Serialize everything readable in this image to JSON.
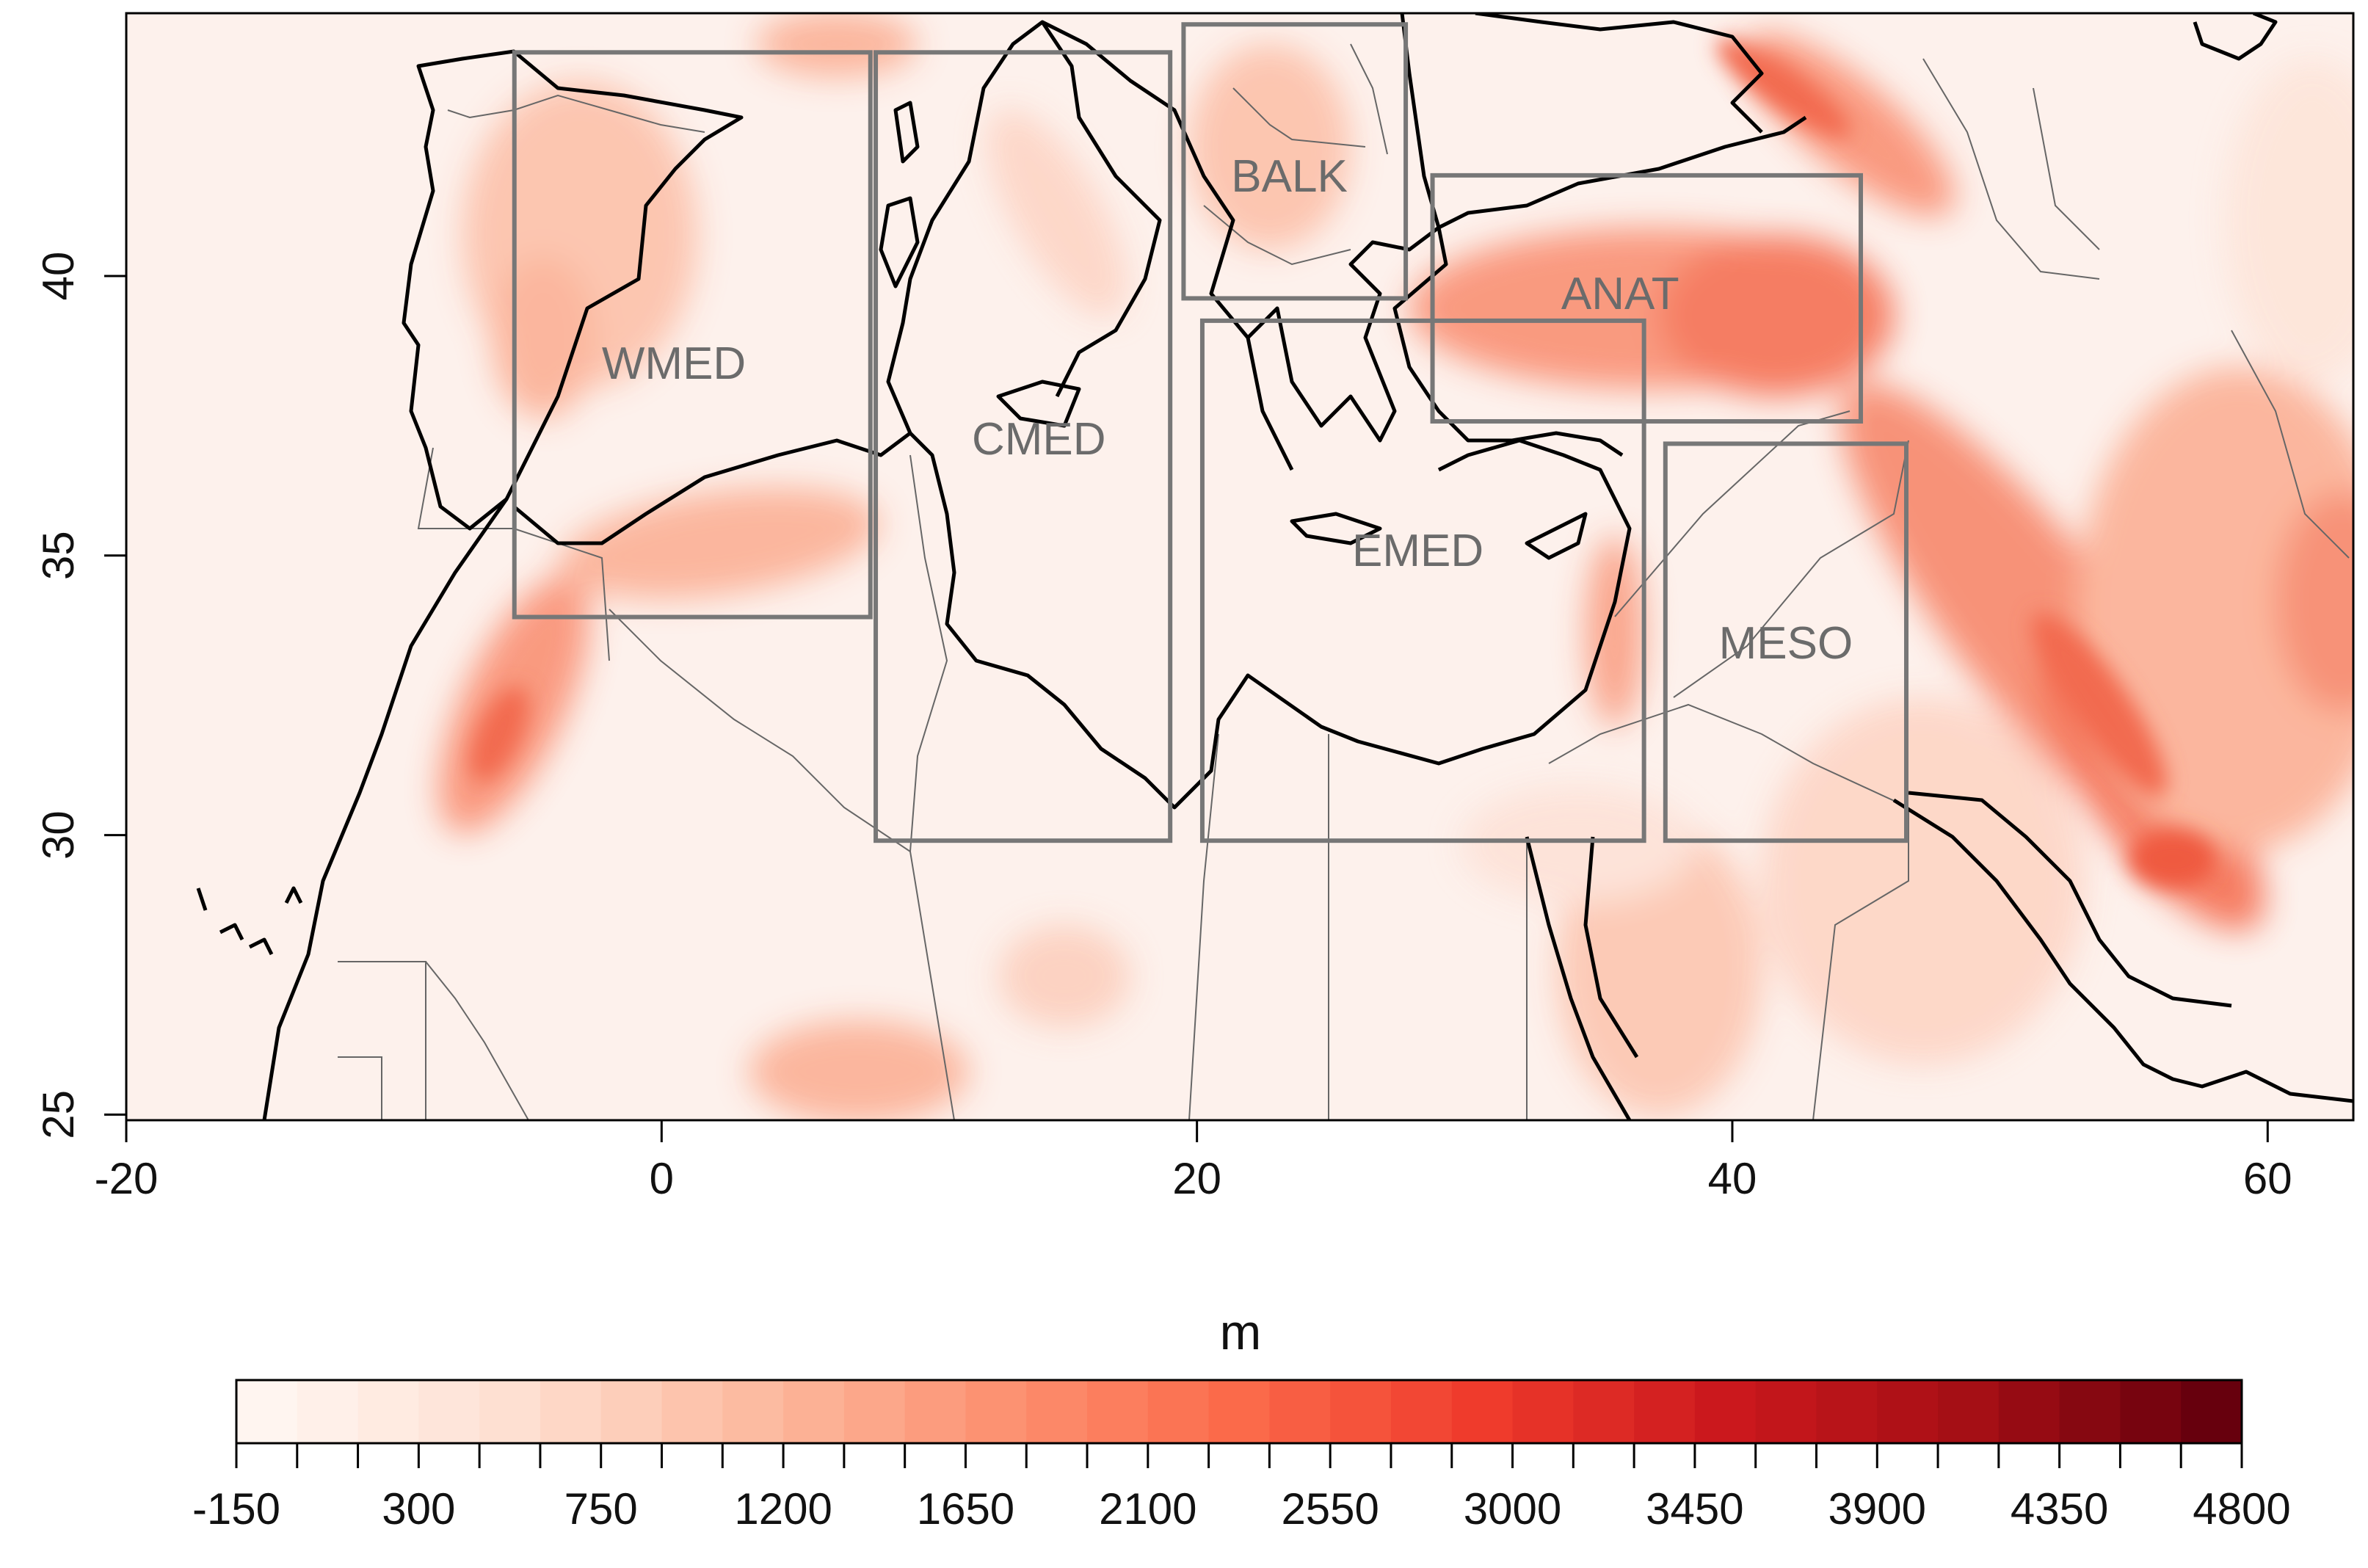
{
  "map": {
    "x_ticks": [
      "-20",
      "0",
      "20",
      "40",
      "60"
    ],
    "y_ticks": [
      "25",
      "30",
      "35",
      "40"
    ],
    "regions": [
      {
        "id": "WMED",
        "label": "WMED",
        "lon": [
          -5.5,
          7.8
        ],
        "lat": [
          33.9,
          44.0
        ]
      },
      {
        "id": "CMED",
        "label": "CMED",
        "lon": [
          8.0,
          19.0
        ],
        "lat": [
          29.9,
          44.0
        ]
      },
      {
        "id": "BALK",
        "label": "BALK",
        "lon": [
          19.5,
          27.8
        ],
        "lat": [
          39.6,
          44.5
        ]
      },
      {
        "id": "ANAT",
        "label": "ANAT",
        "lon": [
          28.8,
          44.8
        ],
        "lat": [
          37.4,
          41.8
        ]
      },
      {
        "id": "EMED",
        "label": "EMED",
        "lon": [
          20.2,
          36.7
        ],
        "lat": [
          29.9,
          39.2
        ]
      },
      {
        "id": "MESO",
        "label": "MESO",
        "lon": [
          37.5,
          46.5
        ],
        "lat": [
          29.9,
          37.0
        ]
      }
    ],
    "colors": {
      "region_box": "#777777",
      "coastline": "#000000",
      "border": "#666666",
      "background_low": "#fdf1ec"
    }
  },
  "colorbar": {
    "unit": "m",
    "tick_labels": [
      "-150",
      "300",
      "750",
      "1200",
      "1650",
      "2100",
      "2550",
      "3000",
      "3450",
      "3900",
      "4350",
      "4800"
    ],
    "bins": 33,
    "range": [
      -150,
      4800
    ],
    "palette": [
      "#fff5f0",
      "#fee0d2",
      "#fcbba1",
      "#fc9272",
      "#fb6a4a",
      "#ef3b2c",
      "#cb181d",
      "#a50f15",
      "#67000d"
    ]
  }
}
